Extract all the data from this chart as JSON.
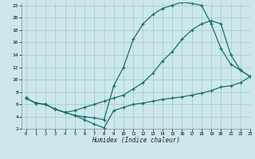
{
  "xlabel": "Humidex (Indice chaleur)",
  "ylabel": "",
  "bg_color": "#cce8ec",
  "grid_color": "#aacccc",
  "line_color": "#1a6e6e",
  "xlim": [
    -0.5,
    23
  ],
  "ylim": [
    2,
    22.5
  ],
  "xticks": [
    0,
    1,
    2,
    3,
    4,
    5,
    6,
    7,
    8,
    9,
    10,
    11,
    12,
    13,
    14,
    15,
    16,
    17,
    18,
    19,
    20,
    21,
    22,
    23
  ],
  "yticks": [
    2,
    4,
    6,
    8,
    10,
    12,
    14,
    16,
    18,
    20,
    22
  ],
  "line1_x": [
    0,
    1,
    2,
    3,
    4,
    5,
    6,
    7,
    8,
    9,
    10,
    11,
    12,
    13,
    14,
    15,
    16,
    17,
    18,
    19,
    20,
    21,
    22,
    23
  ],
  "line1_y": [
    7.0,
    6.2,
    6.0,
    5.2,
    4.7,
    4.2,
    4.0,
    3.8,
    3.5,
    9.0,
    12.0,
    16.5,
    19.0,
    20.5,
    21.5,
    22.0,
    22.5,
    22.3,
    22.0,
    19.0,
    15.0,
    12.5,
    11.5,
    10.5
  ],
  "line2_x": [
    0,
    1,
    2,
    3,
    4,
    5,
    6,
    7,
    8,
    9,
    10,
    11,
    12,
    13,
    14,
    15,
    16,
    17,
    18,
    19,
    20,
    21,
    22,
    23
  ],
  "line2_y": [
    7.0,
    6.2,
    6.0,
    5.2,
    4.7,
    5.0,
    5.5,
    6.0,
    6.5,
    7.0,
    7.5,
    8.5,
    9.5,
    11.0,
    13.0,
    14.5,
    16.5,
    18.0,
    19.0,
    19.5,
    19.0,
    14.0,
    11.5,
    10.5
  ],
  "line3_x": [
    0,
    1,
    2,
    3,
    4,
    5,
    6,
    7,
    8,
    9,
    10,
    11,
    12,
    13,
    14,
    15,
    16,
    17,
    18,
    19,
    20,
    21,
    22,
    23
  ],
  "line3_y": [
    7.0,
    6.2,
    6.0,
    5.2,
    4.7,
    4.2,
    3.5,
    2.8,
    2.2,
    5.0,
    5.5,
    6.0,
    6.2,
    6.5,
    6.8,
    7.0,
    7.2,
    7.5,
    7.8,
    8.2,
    8.8,
    9.0,
    9.5,
    10.5
  ]
}
